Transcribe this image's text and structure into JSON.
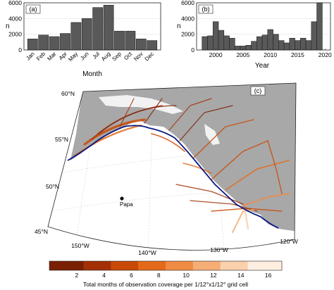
{
  "chart_data": [
    {
      "type": "bar",
      "panel_label": "(a)",
      "categories": [
        "Jan",
        "Feb",
        "Mar",
        "Apr",
        "May",
        "Jun",
        "Jul",
        "Aug",
        "Sep",
        "Oct",
        "Nov",
        "Dec"
      ],
      "values": [
        1400,
        1900,
        1700,
        2100,
        3500,
        4000,
        5400,
        5700,
        2400,
        2400,
        1400,
        1200
      ],
      "xlabel": "Month",
      "ylabel": "n",
      "ylim": [
        0,
        6000
      ],
      "yticks": [
        0,
        2000,
        4000,
        6000
      ],
      "bar_color": "#595959"
    },
    {
      "type": "bar",
      "panel_label": "(b)",
      "x": [
        1998,
        1999,
        2000,
        2001,
        2002,
        2003,
        2004,
        2005,
        2006,
        2007,
        2008,
        2009,
        2010,
        2011,
        2012,
        2013,
        2014,
        2015,
        2016,
        2017,
        2018,
        2019
      ],
      "values": [
        1700,
        1800,
        3600,
        2500,
        1800,
        1500,
        500,
        500,
        600,
        1100,
        1700,
        1900,
        2600,
        2000,
        1200,
        900,
        1500,
        1200,
        1500,
        1200,
        3600,
        6000
      ],
      "xticks": [
        2000,
        2005,
        2010,
        2015,
        2020
      ],
      "xlabel": "Year",
      "ylabel": "n",
      "xlim": [
        1996.5,
        2021
      ],
      "ylim": [
        0,
        6000
      ],
      "yticks": [
        0,
        2000,
        4000,
        6000
      ],
      "bar_color": "#595959"
    },
    {
      "type": "heatmap",
      "panel_label": "(c)",
      "lat_labels": [
        "60°N",
        "55°N",
        "50°N",
        "45°N"
      ],
      "lon_labels": [
        "150°W",
        "140°W",
        "130°W",
        "120°W"
      ],
      "station": {
        "label": "Papa",
        "lat": 50.0,
        "lon": -145.0
      },
      "colorbar": {
        "label": "Total months of observation coverage per 1/12°x1/12° grid cell",
        "ticks": [
          2,
          4,
          6,
          8,
          10,
          12,
          14,
          16
        ],
        "range": [
          0,
          17
        ],
        "colors": [
          "#7a1f04",
          "#a33005",
          "#c94a06",
          "#e46a1a",
          "#f08b43",
          "#f6ad76",
          "#fad0ad",
          "#fdeee0"
        ]
      },
      "land_color": "#a8a8a8",
      "ice_color": "#f2f2f2",
      "shelf_line_color": "#0a1a80"
    }
  ]
}
